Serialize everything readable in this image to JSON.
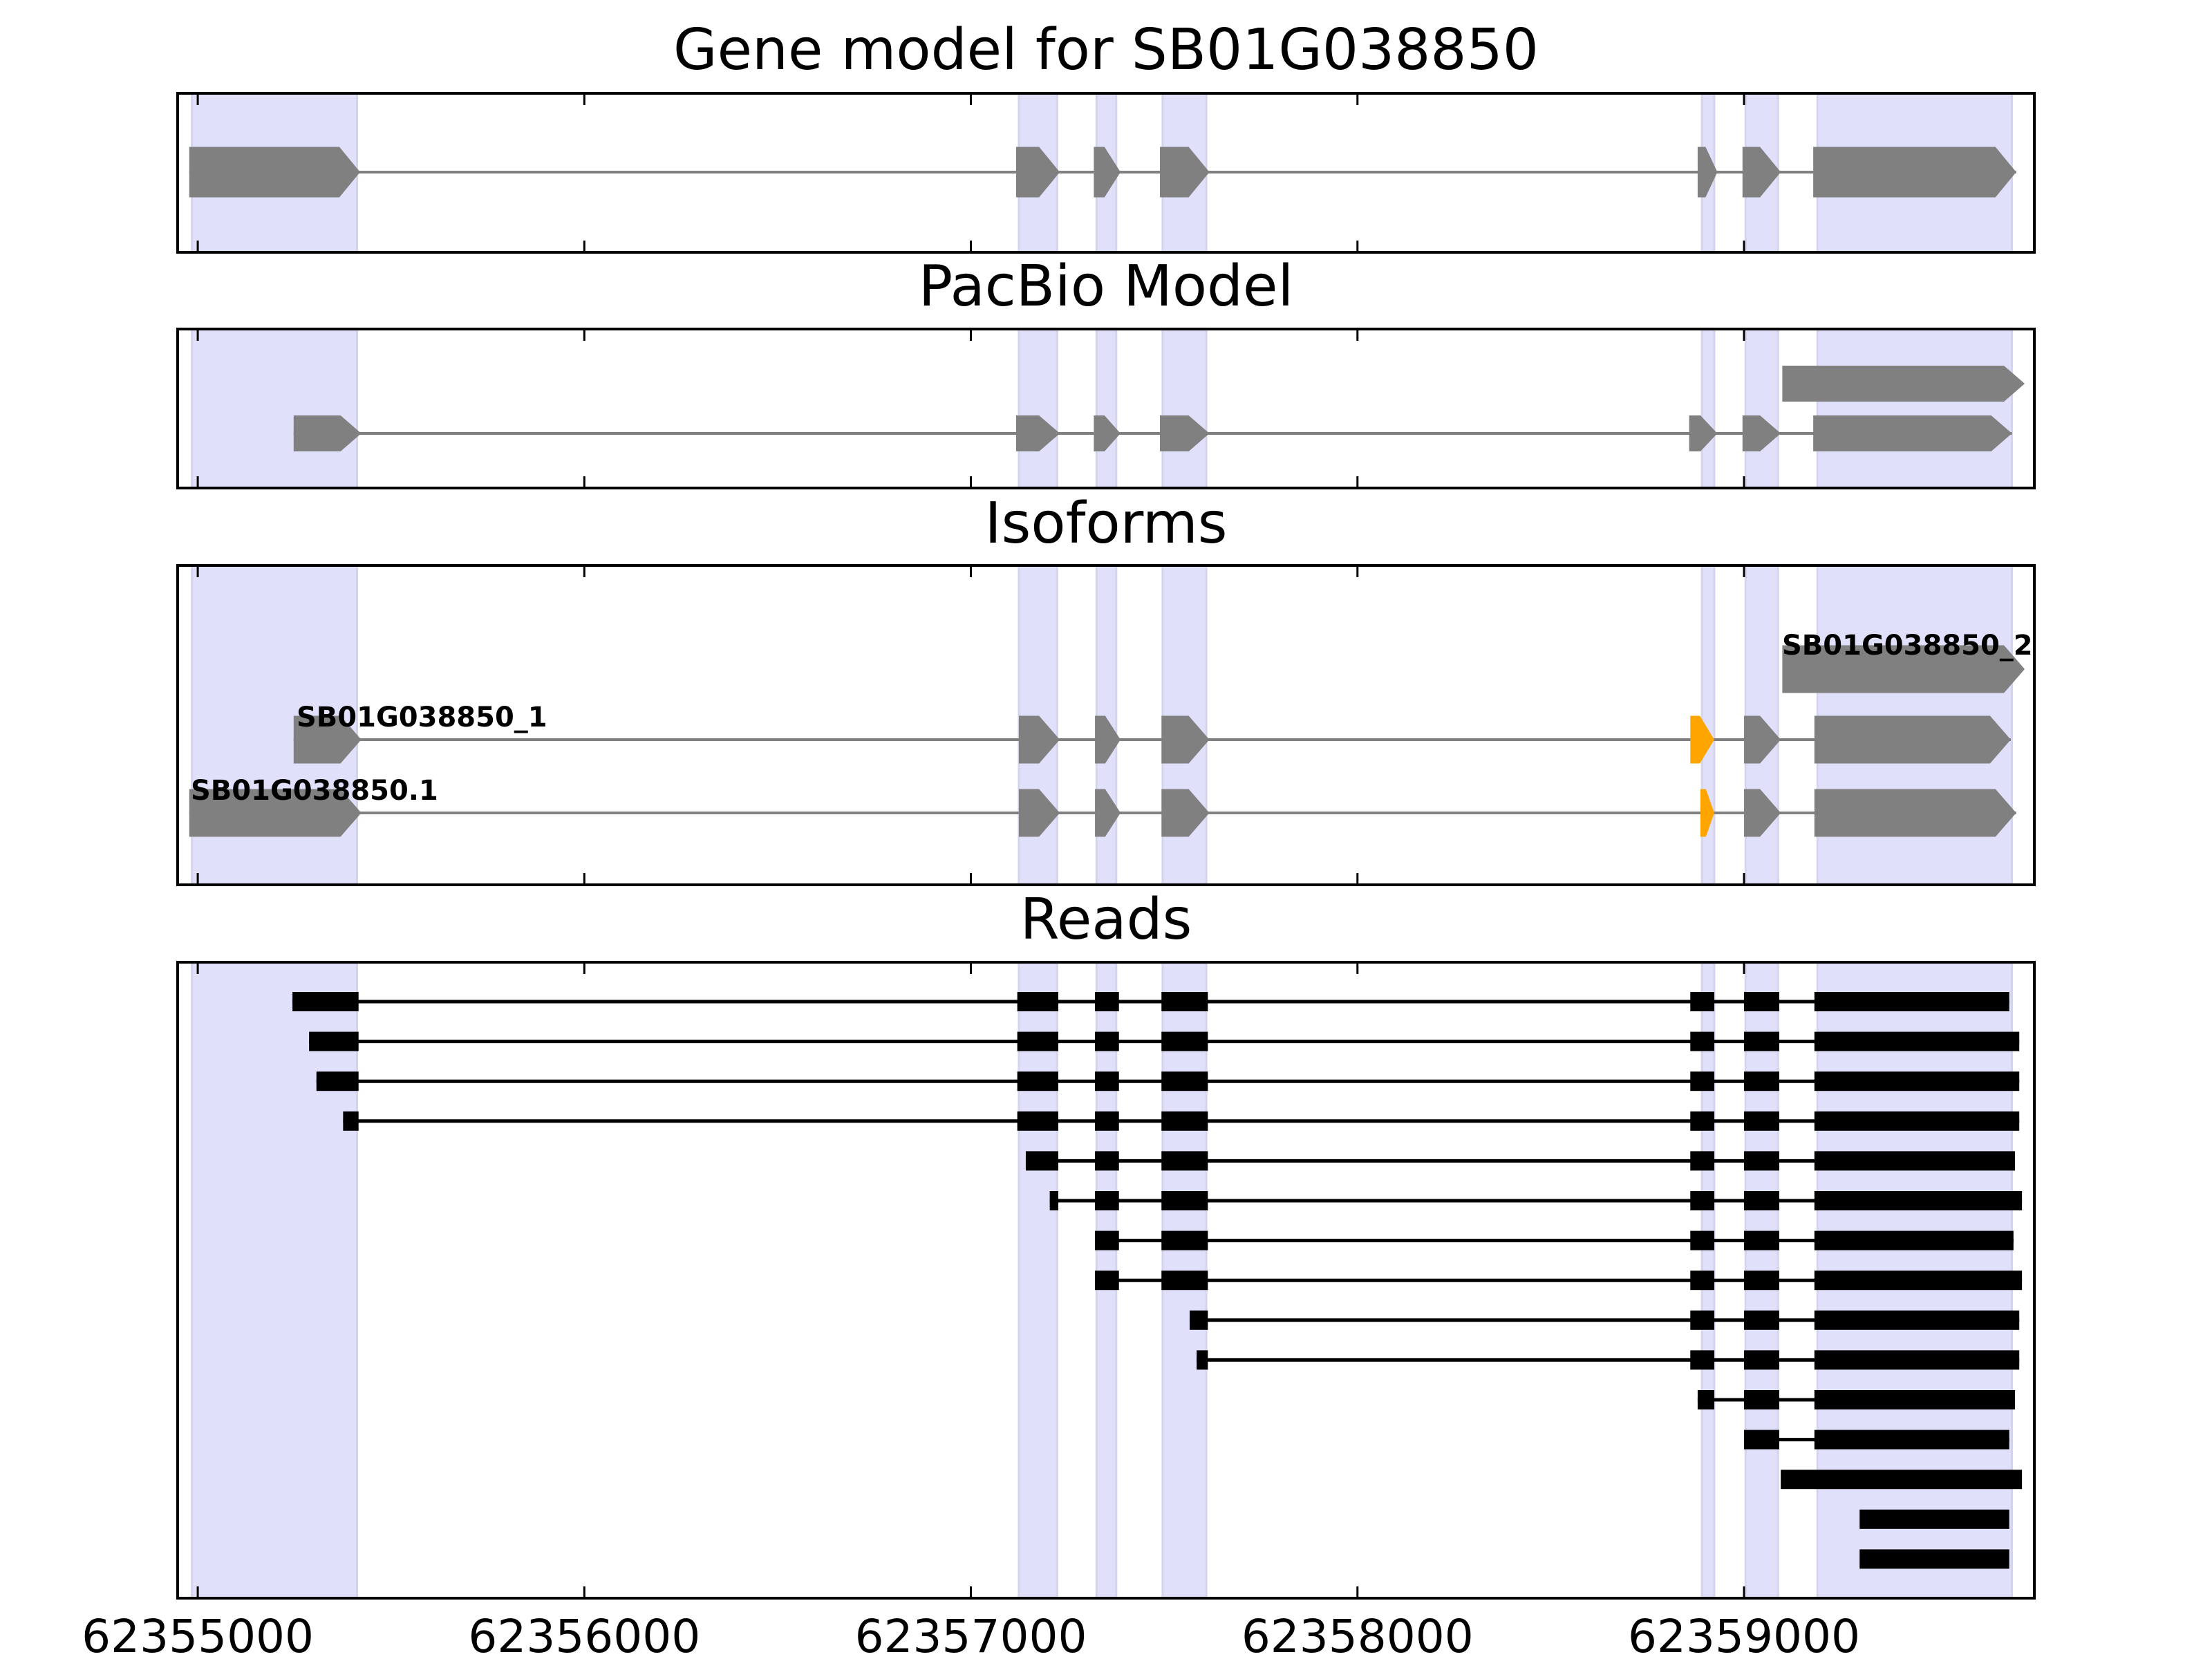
{
  "chart_data": {
    "type": "gene-track",
    "xlim": [
      62354948,
      62359751
    ],
    "xticks": [
      62355000,
      62356000,
      62357000,
      62358000,
      62359000
    ],
    "xtick_labels": [
      "62355000",
      "62356000",
      "62357000",
      "62358000",
      "62359000"
    ],
    "shaded_regions": [
      [
        62354985,
        62355412
      ],
      [
        62357124,
        62357223
      ],
      [
        62357325,
        62357376
      ],
      [
        62357496,
        62357609
      ],
      [
        62358891,
        62358923
      ],
      [
        62359004,
        62359088
      ],
      [
        62359190,
        62359693
      ]
    ],
    "colors": {
      "exon": "#808080",
      "highlight": "#FFA500",
      "read": "#000000",
      "shade": "#E0E0FA",
      "intron": "#808080"
    },
    "panels": [
      {
        "title": "Gene model for SB01G038850",
        "kind": "gene",
        "tracks": [
          {
            "label": null,
            "exons": [
              [
                62354978,
                62355420
              ],
              [
                62357117,
                62357230
              ],
              [
                62357318,
                62357387
              ],
              [
                62357489,
                62357617
              ],
              [
                62358880,
                62358931
              ],
              [
                62358996,
                62359095
              ],
              [
                62359179,
                62359704
              ]
            ]
          }
        ]
      },
      {
        "title": "PacBio Model",
        "kind": "gene",
        "tracks": [
          {
            "label": null,
            "exons": [
              [
                62359099,
                62359726
              ]
            ]
          },
          {
            "label": null,
            "exons": [
              [
                62355248,
                62355423
              ],
              [
                62357117,
                62357230
              ],
              [
                62357318,
                62357387
              ],
              [
                62357489,
                62357617
              ],
              [
                62358858,
                62358931
              ],
              [
                62358996,
                62359095
              ],
              [
                62359179,
                62359693
              ]
            ]
          }
        ]
      },
      {
        "title": "Isoforms",
        "kind": "gene",
        "tracks": [
          {
            "label": "SB01G038850_2",
            "exons": [
              [
                62359099,
                62359726
              ]
            ],
            "highlight": []
          },
          {
            "label": "SB01G038850_1",
            "exons": [
              [
                62355248,
                62355423
              ],
              [
                62357124,
                62357230
              ],
              [
                62357321,
                62357387
              ],
              [
                62357493,
                62357617
              ],
              [
                62358861,
                62358923
              ],
              [
                62359000,
                62359095
              ],
              [
                62359182,
                62359690
              ]
            ],
            "highlight": [
              4
            ]
          },
          {
            "label": "SB01G038850.1",
            "exons": [
              [
                62354978,
                62355423
              ],
              [
                62357124,
                62357230
              ],
              [
                62357321,
                62357387
              ],
              [
                62357493,
                62357617
              ],
              [
                62358887,
                62358923
              ],
              [
                62359000,
                62359095
              ],
              [
                62359182,
                62359704
              ]
            ],
            "highlight": [
              4
            ]
          }
        ]
      },
      {
        "title": "Reads",
        "kind": "reads",
        "tracks": [
          {
            "exons": [
              [
                62355245,
                62355416
              ],
              [
                62357120,
                62357226
              ],
              [
                62357321,
                62357383
              ],
              [
                62357493,
                62357613
              ],
              [
                62358861,
                62358923
              ],
              [
                62359000,
                62359091
              ],
              [
                62359182,
                62359686
              ]
            ]
          },
          {
            "exons": [
              [
                62355288,
                62355416
              ],
              [
                62357120,
                62357226
              ],
              [
                62357321,
                62357383
              ],
              [
                62357493,
                62357613
              ],
              [
                62358861,
                62358923
              ],
              [
                62359000,
                62359091
              ],
              [
                62359182,
                62359712
              ]
            ]
          },
          {
            "exons": [
              [
                62355307,
                62355416
              ],
              [
                62357120,
                62357226
              ],
              [
                62357321,
                62357383
              ],
              [
                62357493,
                62357613
              ],
              [
                62358861,
                62358923
              ],
              [
                62359000,
                62359091
              ],
              [
                62359182,
                62359712
              ]
            ]
          },
          {
            "exons": [
              [
                62355376,
                62355416
              ],
              [
                62357120,
                62357226
              ],
              [
                62357321,
                62357383
              ],
              [
                62357493,
                62357613
              ],
              [
                62358861,
                62358923
              ],
              [
                62359000,
                62359091
              ],
              [
                62359182,
                62359712
              ]
            ]
          },
          {
            "exons": [
              [
                62357142,
                62357226
              ],
              [
                62357321,
                62357383
              ],
              [
                62357493,
                62357613
              ],
              [
                62358861,
                62358923
              ],
              [
                62359000,
                62359091
              ],
              [
                62359182,
                62359701
              ]
            ]
          },
          {
            "exons": [
              [
                62357204,
                62357226
              ],
              [
                62357321,
                62357383
              ],
              [
                62357493,
                62357613
              ],
              [
                62358861,
                62358923
              ],
              [
                62359000,
                62359091
              ],
              [
                62359182,
                62359719
              ]
            ]
          },
          {
            "exons": [
              [
                62357321,
                62357383
              ],
              [
                62357493,
                62357613
              ],
              [
                62358861,
                62358923
              ],
              [
                62359000,
                62359091
              ],
              [
                62359182,
                62359697
              ]
            ]
          },
          {
            "exons": [
              [
                62357321,
                62357383
              ],
              [
                62357493,
                62357613
              ],
              [
                62358861,
                62358923
              ],
              [
                62359000,
                62359091
              ],
              [
                62359182,
                62359719
              ]
            ]
          },
          {
            "exons": [
              [
                62357566,
                62357613
              ],
              [
                62358861,
                62358923
              ],
              [
                62359000,
                62359091
              ],
              [
                62359182,
                62359712
              ]
            ]
          },
          {
            "exons": [
              [
                62357584,
                62357613
              ],
              [
                62358861,
                62358923
              ],
              [
                62359000,
                62359091
              ],
              [
                62359182,
                62359712
              ]
            ]
          },
          {
            "exons": [
              [
                62358880,
                62358923
              ],
              [
                62359000,
                62359091
              ],
              [
                62359182,
                62359701
              ]
            ]
          },
          {
            "exons": [
              [
                62359000,
                62359091
              ],
              [
                62359182,
                62359686
              ]
            ]
          },
          {
            "exons": [
              [
                62359095,
                62359719
              ]
            ]
          },
          {
            "exons": [
              [
                62359299,
                62359686
              ]
            ]
          },
          {
            "exons": [
              [
                62359299,
                62359686
              ]
            ]
          }
        ]
      }
    ]
  }
}
